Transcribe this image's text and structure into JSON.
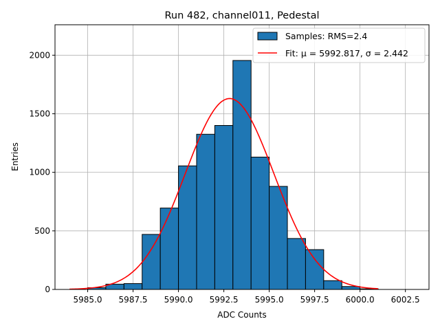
{
  "chart_data": {
    "type": "bar",
    "title": "Run 482, channel011, Pedestal",
    "xlabel": "ADC Counts",
    "ylabel": "Entries",
    "xlim": [
      5983.2,
      6003.8
    ],
    "ylim": [
      0,
      2260
    ],
    "xticks": [
      5985.0,
      5987.5,
      5990.0,
      5992.5,
      5995.0,
      5997.5,
      6000.0,
      6002.5
    ],
    "xtick_labels": [
      "5985.0",
      "5987.5",
      "5990.0",
      "5992.5",
      "5995.0",
      "5997.5",
      "6000.0",
      "6002.5"
    ],
    "yticks": [
      0,
      500,
      1000,
      1500,
      2000
    ],
    "ytick_labels": [
      "0",
      "500",
      "1000",
      "1500",
      "2000"
    ],
    "grid": true,
    "legend_position": "top-right",
    "histogram": {
      "name": "Samples: RMS=2.4",
      "bin_width": 1,
      "bin_starts": [
        5985,
        5986,
        5987,
        5988,
        5989,
        5990,
        5991,
        5992,
        5993,
        5994,
        5995,
        5996,
        5997,
        5998,
        5999,
        6000
      ],
      "values": [
        15,
        45,
        50,
        470,
        695,
        1055,
        1325,
        1400,
        1955,
        1130,
        880,
        435,
        340,
        75,
        25,
        5
      ],
      "color": "#1f77b4"
    },
    "fit": {
      "name": "Fit: μ = 5992.817, σ = 2.442",
      "mu": 5992.817,
      "sigma": 2.442,
      "amplitude": 1630,
      "x_range": [
        5984,
        6001
      ],
      "color": "#ff0000"
    }
  }
}
